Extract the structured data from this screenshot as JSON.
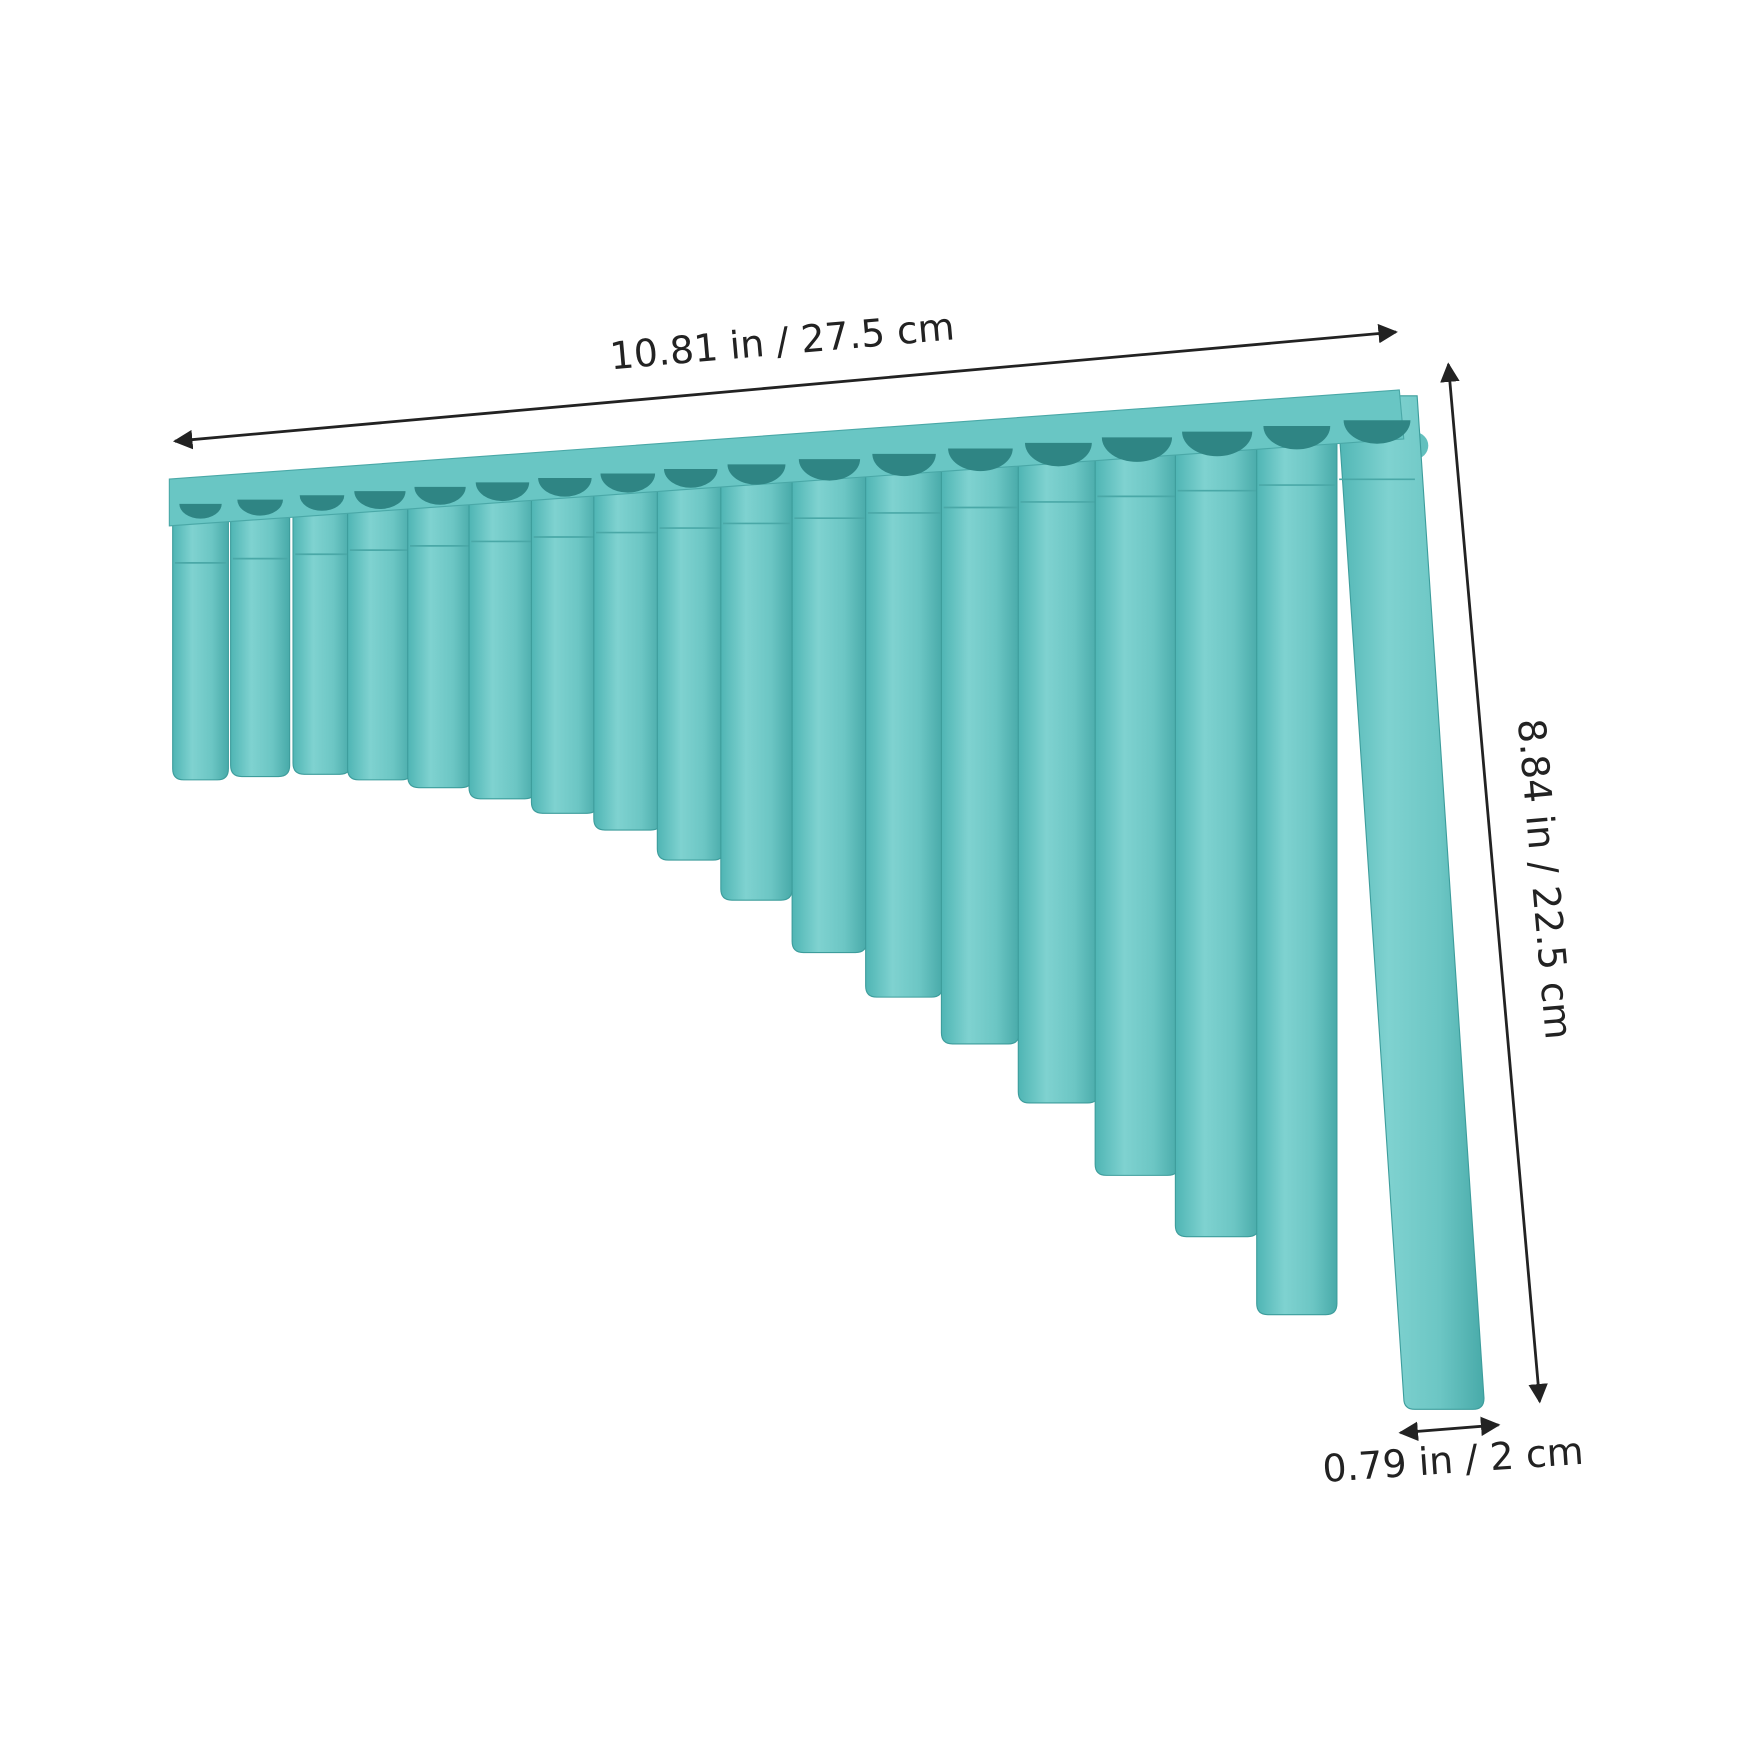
{
  "labels": {
    "width": "10.81 in / 27.5 cm",
    "height": "8.84 in / 22.5 cm",
    "diameter": "0.79 in / 2 cm"
  }
}
